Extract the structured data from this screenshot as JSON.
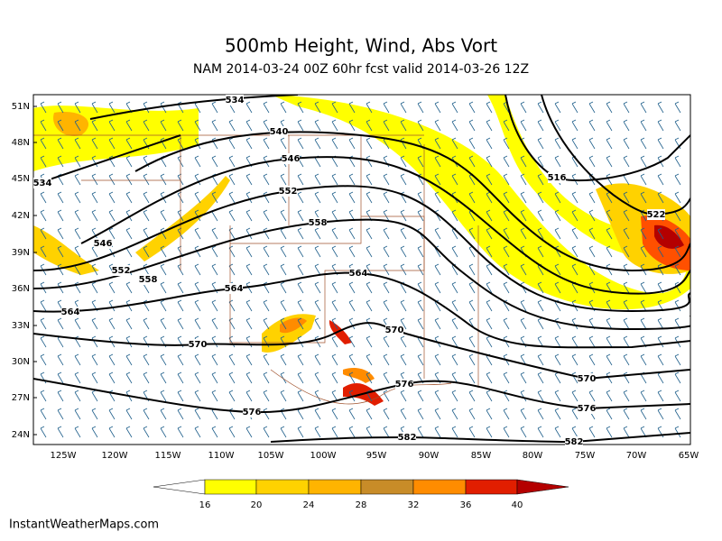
{
  "header": {
    "title": "500mb Height, Wind, Abs Vort",
    "subtitle": "NAM 2014-03-24 00Z 60hr fcst valid 2014-03-26 12Z"
  },
  "map": {
    "lat_labels": [
      "51N",
      "48N",
      "45N",
      "42N",
      "39N",
      "36N",
      "33N",
      "30N",
      "27N",
      "24N"
    ],
    "lon_labels": [
      "125W",
      "120W",
      "115W",
      "110W",
      "105W",
      "100W",
      "95W",
      "90W",
      "85W",
      "80W",
      "75W",
      "70W",
      "65W"
    ],
    "contour_labels": [
      "534",
      "540",
      "546",
      "552",
      "558",
      "564",
      "570",
      "576",
      "582",
      "516",
      "522",
      "534",
      "546",
      "552",
      "558",
      "564",
      "564",
      "570",
      "576",
      "570",
      "576",
      "582"
    ]
  },
  "colorbar": {
    "labels": [
      "16",
      "20",
      "24",
      "28",
      "32",
      "36",
      "40"
    ]
  },
  "footer": "InstantWeatherMaps.com"
}
